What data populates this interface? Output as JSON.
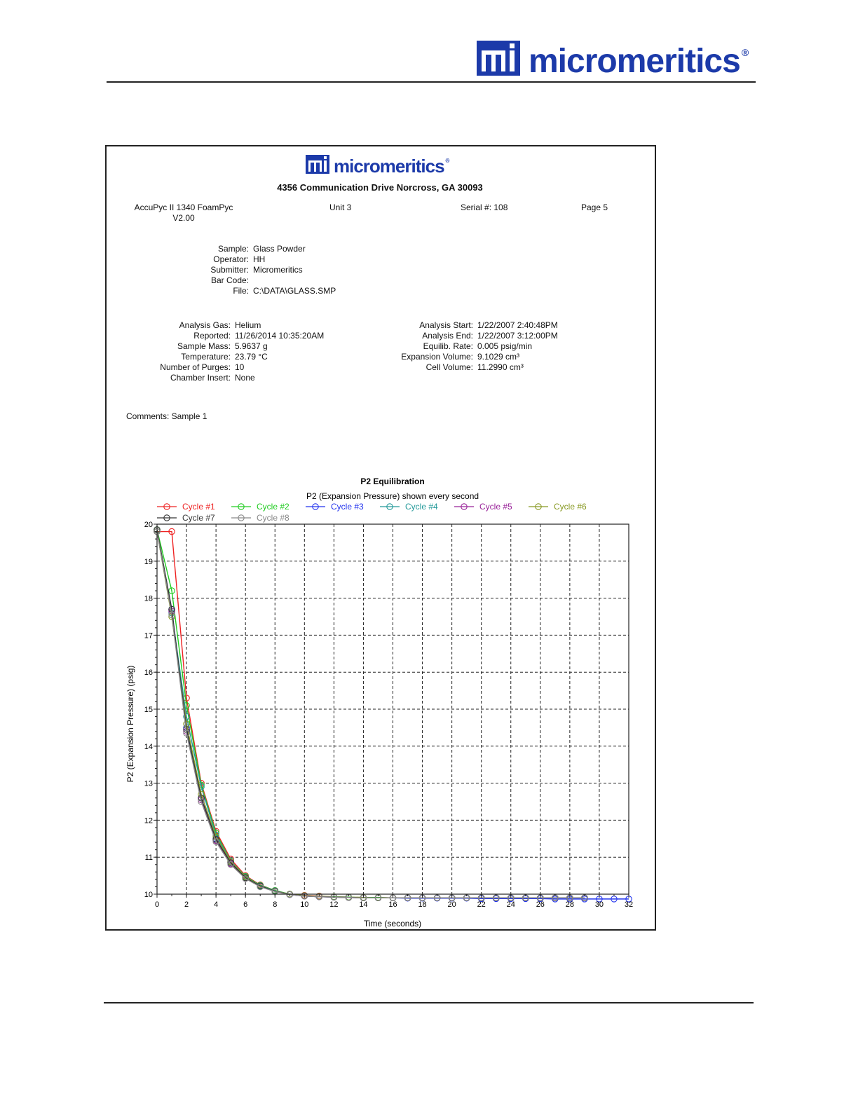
{
  "header": {
    "brand": "micromeritics",
    "registered": "®"
  },
  "report": {
    "brand": "micromeritics",
    "registered": "®",
    "address": "4356 Communication Drive Norcross, GA 30093",
    "instrument": "AccuPyc II 1340 FoamPyc",
    "version": "V2.00",
    "unit": "Unit 3",
    "serial": "Serial #: 108",
    "page": "Page 5",
    "sample_info": [
      {
        "label": "Sample:",
        "value": "Glass Powder"
      },
      {
        "label": "Operator:",
        "value": "HH"
      },
      {
        "label": "Submitter:",
        "value": "Micromeritics"
      },
      {
        "label": "Bar Code:",
        "value": ""
      },
      {
        "label": "File:",
        "value": "C:\\DATA\\GLASS.SMP"
      }
    ],
    "analysis_left": [
      {
        "label": "Analysis Gas:",
        "value": "Helium"
      },
      {
        "label": "Reported:",
        "value": "11/26/2014 10:35:20AM"
      },
      {
        "label": "Sample Mass:",
        "value": "5.9637 g"
      },
      {
        "label": "Temperature:",
        "value": "23.79 °C"
      },
      {
        "label": "Number of Purges:",
        "value": "10"
      },
      {
        "label": "Chamber Insert:",
        "value": "None"
      }
    ],
    "analysis_right": [
      {
        "label": "Analysis Start:",
        "value": "1/22/2007 2:40:48PM"
      },
      {
        "label": "Analysis End:",
        "value": "1/22/2007 3:12:00PM"
      },
      {
        "label": "Equilib. Rate:",
        "value": "0.005 psig/min"
      },
      {
        "label": "Expansion Volume:",
        "value": "9.1029 cm³"
      },
      {
        "label": "Cell Volume:",
        "value": "11.2990 cm³"
      }
    ],
    "comments": "Comments: Sample 1"
  },
  "chart_data": {
    "type": "line",
    "title": "P2 Equilibration",
    "subtitle": "P2 (Expansion Pressure) shown every second",
    "xlabel": "Time (seconds)",
    "ylabel": "P2 (Expansion Pressure) (psig)",
    "xlim": [
      0,
      32
    ],
    "ylim": [
      10,
      20
    ],
    "x_ticks": [
      0,
      2,
      4,
      6,
      8,
      10,
      12,
      14,
      16,
      18,
      20,
      22,
      24,
      26,
      28,
      30,
      32
    ],
    "y_ticks": [
      10,
      11,
      12,
      13,
      14,
      15,
      16,
      17,
      18,
      19,
      20
    ],
    "grid": true,
    "grid_style": "dashed",
    "legend_position": "top-left",
    "series": [
      {
        "name": "Cycle #1",
        "color": "#ee2222",
        "x": [
          0,
          1,
          2,
          3,
          4,
          5,
          6,
          7,
          8,
          9,
          10,
          11,
          12,
          13,
          14,
          15,
          16,
          17,
          18,
          19,
          20,
          21,
          22,
          23,
          24,
          25,
          26,
          27,
          28,
          29
        ],
        "y": [
          19.8,
          19.8,
          15.3,
          13.0,
          11.7,
          10.95,
          10.5,
          10.25,
          10.1,
          10.0,
          9.97,
          9.95,
          9.93,
          9.92,
          9.91,
          9.91,
          9.9,
          9.9,
          9.9,
          9.9,
          9.9,
          9.9,
          9.9,
          9.9,
          9.9,
          9.9,
          9.9,
          9.9,
          9.9,
          9.9
        ]
      },
      {
        "name": "Cycle #2",
        "color": "#22cc22",
        "x": [
          0,
          1,
          2,
          3,
          4,
          5,
          6,
          7,
          8,
          9,
          10,
          11,
          12,
          13,
          14,
          15,
          16,
          17,
          18,
          19,
          20,
          21,
          22,
          23,
          24,
          25,
          26,
          27,
          28,
          29
        ],
        "y": [
          19.85,
          18.2,
          15.1,
          12.95,
          11.65,
          10.9,
          10.48,
          10.24,
          10.1,
          10.0,
          9.96,
          9.94,
          9.93,
          9.92,
          9.91,
          9.91,
          9.9,
          9.9,
          9.9,
          9.9,
          9.9,
          9.9,
          9.9,
          9.9,
          9.9,
          9.9,
          9.9,
          9.9,
          9.9,
          9.9
        ]
      },
      {
        "name": "Cycle #3",
        "color": "#2233ee",
        "x": [
          0,
          1,
          2,
          3,
          4,
          5,
          6,
          7,
          8,
          9,
          10,
          11,
          12,
          13,
          14,
          15,
          16,
          17,
          18,
          19,
          20,
          21,
          22,
          23,
          24,
          25,
          26,
          27,
          28,
          29,
          30,
          31,
          32
        ],
        "y": [
          19.8,
          17.7,
          14.5,
          12.6,
          11.5,
          10.85,
          10.45,
          10.22,
          10.08,
          9.99,
          9.95,
          9.93,
          9.92,
          9.91,
          9.9,
          9.9,
          9.9,
          9.89,
          9.89,
          9.89,
          9.89,
          9.89,
          9.88,
          9.88,
          9.88,
          9.88,
          9.88,
          9.87,
          9.87,
          9.87,
          9.87,
          9.87,
          9.87
        ]
      },
      {
        "name": "Cycle #4",
        "color": "#229999",
        "x": [
          0,
          1,
          2,
          3,
          4,
          5,
          6,
          7,
          8,
          9,
          10,
          11,
          12,
          13,
          14,
          15,
          16,
          17,
          18,
          19,
          20,
          21,
          22,
          23,
          24,
          25,
          26,
          27,
          28,
          29
        ],
        "y": [
          19.8,
          17.6,
          14.8,
          12.9,
          11.6,
          10.9,
          10.47,
          10.23,
          10.09,
          10.0,
          9.96,
          9.94,
          9.92,
          9.91,
          9.91,
          9.9,
          9.9,
          9.9,
          9.9,
          9.9,
          9.9,
          9.9,
          9.9,
          9.9,
          9.9,
          9.9,
          9.9,
          9.9,
          9.9,
          9.9
        ]
      },
      {
        "name": "Cycle #5",
        "color": "#992299",
        "x": [
          0,
          1,
          2,
          3,
          4,
          5,
          6,
          7,
          8,
          9,
          10,
          11,
          12,
          13,
          14,
          15,
          16,
          17,
          18,
          19,
          20,
          21,
          22,
          23,
          24,
          25,
          26,
          27,
          28,
          29
        ],
        "y": [
          19.8,
          17.65,
          14.4,
          12.55,
          11.45,
          10.82,
          10.43,
          10.21,
          10.08,
          9.99,
          9.95,
          9.93,
          9.92,
          9.91,
          9.9,
          9.9,
          9.9,
          9.9,
          9.9,
          9.9,
          9.9,
          9.9,
          9.9,
          9.9,
          9.9,
          9.9,
          9.9,
          9.9,
          9.9,
          9.9
        ]
      },
      {
        "name": "Cycle #6",
        "color": "#889922",
        "x": [
          0,
          1,
          2,
          3,
          4,
          5,
          6,
          7,
          8,
          9,
          10,
          11,
          12,
          13,
          14,
          15,
          16,
          17,
          18,
          19,
          20,
          21,
          22,
          23,
          24,
          25,
          26,
          27,
          28,
          29
        ],
        "y": [
          19.8,
          17.5,
          14.6,
          12.7,
          11.55,
          10.88,
          10.46,
          10.22,
          10.08,
          10.0,
          9.96,
          9.94,
          9.92,
          9.91,
          9.91,
          9.9,
          9.9,
          9.9,
          9.9,
          9.9,
          9.9,
          9.9,
          9.9,
          9.9,
          9.9,
          9.9,
          9.9,
          9.9,
          9.9,
          9.9
        ]
      },
      {
        "name": "Cycle #7",
        "color": "#333333",
        "x": [
          0,
          1,
          2,
          3,
          4,
          5,
          6,
          7,
          8,
          9,
          10,
          11,
          12,
          13,
          14,
          15,
          16,
          17,
          18,
          19,
          20,
          21,
          22,
          23,
          24,
          25,
          26,
          27,
          28,
          29
        ],
        "y": [
          19.85,
          17.7,
          14.45,
          12.6,
          11.48,
          10.85,
          10.44,
          10.22,
          10.08,
          9.99,
          9.95,
          9.93,
          9.92,
          9.91,
          9.9,
          9.9,
          9.9,
          9.9,
          9.9,
          9.9,
          9.9,
          9.9,
          9.9,
          9.9,
          9.9,
          9.9,
          9.9,
          9.9,
          9.9,
          9.9
        ]
      },
      {
        "name": "Cycle #8",
        "color": "#888888",
        "x": [
          0,
          1,
          2,
          3,
          4,
          5,
          6,
          7,
          8,
          9,
          10,
          11,
          12,
          13,
          14,
          15,
          16,
          17,
          18,
          19,
          20,
          21,
          22,
          23,
          24,
          25,
          26,
          27,
          28,
          29
        ],
        "y": [
          19.8,
          17.55,
          14.35,
          12.5,
          11.42,
          10.8,
          10.42,
          10.2,
          10.07,
          9.99,
          9.95,
          9.93,
          9.92,
          9.91,
          9.9,
          9.9,
          9.9,
          9.9,
          9.9,
          9.9,
          9.9,
          9.9,
          9.9,
          9.9,
          9.9,
          9.9,
          9.9,
          9.9,
          9.9,
          9.9
        ]
      }
    ]
  }
}
